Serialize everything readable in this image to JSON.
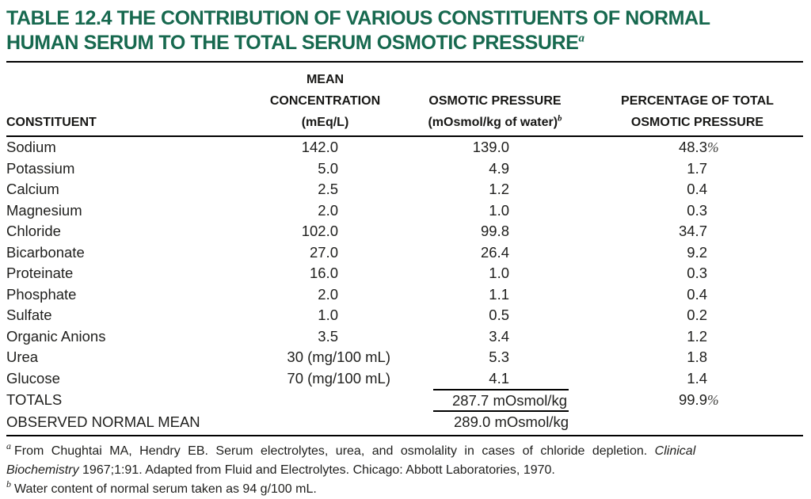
{
  "title": {
    "line1": "TABLE 12.4 THE CONTRIBUTION OF VARIOUS CONSTITUENTS OF NORMAL",
    "line2": "HUMAN SERUM TO THE TOTAL SERUM OSMOTIC PRESSURE",
    "superscript": "a"
  },
  "table": {
    "columns": [
      {
        "lines": [
          "CONSTITUENT"
        ],
        "superscript": ""
      },
      {
        "lines": [
          "MEAN",
          "CONCENTRATION",
          "(mEq/L)"
        ],
        "superscript": ""
      },
      {
        "lines": [
          "OSMOTIC PRESSURE",
          "(mOsmol/kg of water)"
        ],
        "superscript": "b"
      },
      {
        "lines": [
          "PERCENTAGE OF TOTAL",
          "OSMOTIC PRESSURE"
        ],
        "superscript": ""
      }
    ],
    "rows": [
      {
        "constituent": "Sodium",
        "concentration": "142.0",
        "pressure": "139.0",
        "percentage": "48.3%",
        "pressure_ruled": false
      },
      {
        "constituent": "Potassium",
        "concentration": "5.0",
        "pressure": "4.9",
        "percentage": "1.7",
        "pressure_ruled": false
      },
      {
        "constituent": "Calcium",
        "concentration": "2.5",
        "pressure": "1.2",
        "percentage": "0.4",
        "pressure_ruled": false
      },
      {
        "constituent": "Magnesium",
        "concentration": "2.0",
        "pressure": "1.0",
        "percentage": "0.3",
        "pressure_ruled": false
      },
      {
        "constituent": "Chloride",
        "concentration": "102.0",
        "pressure": "99.8",
        "percentage": "34.7",
        "pressure_ruled": false
      },
      {
        "constituent": "Bicarbonate",
        "concentration": "27.0",
        "pressure": "26.4",
        "percentage": "9.2",
        "pressure_ruled": false
      },
      {
        "constituent": "Proteinate",
        "concentration": "16.0",
        "pressure": "1.0",
        "percentage": "0.3",
        "pressure_ruled": false
      },
      {
        "constituent": "Phosphate",
        "concentration": "2.0",
        "pressure": "1.1",
        "percentage": "0.4",
        "pressure_ruled": false
      },
      {
        "constituent": "Sulfate",
        "concentration": "1.0",
        "pressure": "0.5",
        "percentage": "0.2",
        "pressure_ruled": false
      },
      {
        "constituent": "Organic Anions",
        "concentration": "3.5",
        "pressure": "3.4",
        "percentage": "1.2",
        "pressure_ruled": false
      },
      {
        "constituent": "Urea",
        "concentration": "30 (mg/100 mL)",
        "pressure": "5.3",
        "percentage": "1.8",
        "pressure_ruled": false
      },
      {
        "constituent": "Glucose",
        "concentration": "70 (mg/100 mL)",
        "pressure": "4.1",
        "percentage": "1.4",
        "pressure_ruled": false
      },
      {
        "constituent": "TOTALS",
        "concentration": "",
        "pressure": "287.7 mOsmol/kg",
        "percentage": "99.9%",
        "pressure_ruled": true
      },
      {
        "constituent": "OBSERVED NORMAL MEAN",
        "concentration": "",
        "pressure": "289.0 mOsmol/kg",
        "percentage": "",
        "pressure_ruled": false
      }
    ]
  },
  "footnotes": [
    {
      "marker": "a",
      "lines": [
        [
          {
            "text": "From Chughtai MA, Hendry EB. Serum electrolytes, urea, and osmolality in cases of chloride depletion. ",
            "italic": false
          },
          {
            "text": "Clinical",
            "italic": true
          }
        ],
        [
          {
            "text": "Biochemistry",
            "italic": true
          },
          {
            "text": " 1967;1:91. Adapted from Fluid and Electrolytes. Chicago: Abbott Laboratories, 1970.",
            "italic": false
          }
        ]
      ]
    },
    {
      "marker": "b",
      "lines": [
        [
          {
            "text": "Water content of normal serum taken as 94 g/100 mL.",
            "italic": false
          }
        ]
      ]
    }
  ],
  "colors": {
    "title_green": "#17694f",
    "text": "#1f1f1d",
    "rule": "#000000"
  }
}
